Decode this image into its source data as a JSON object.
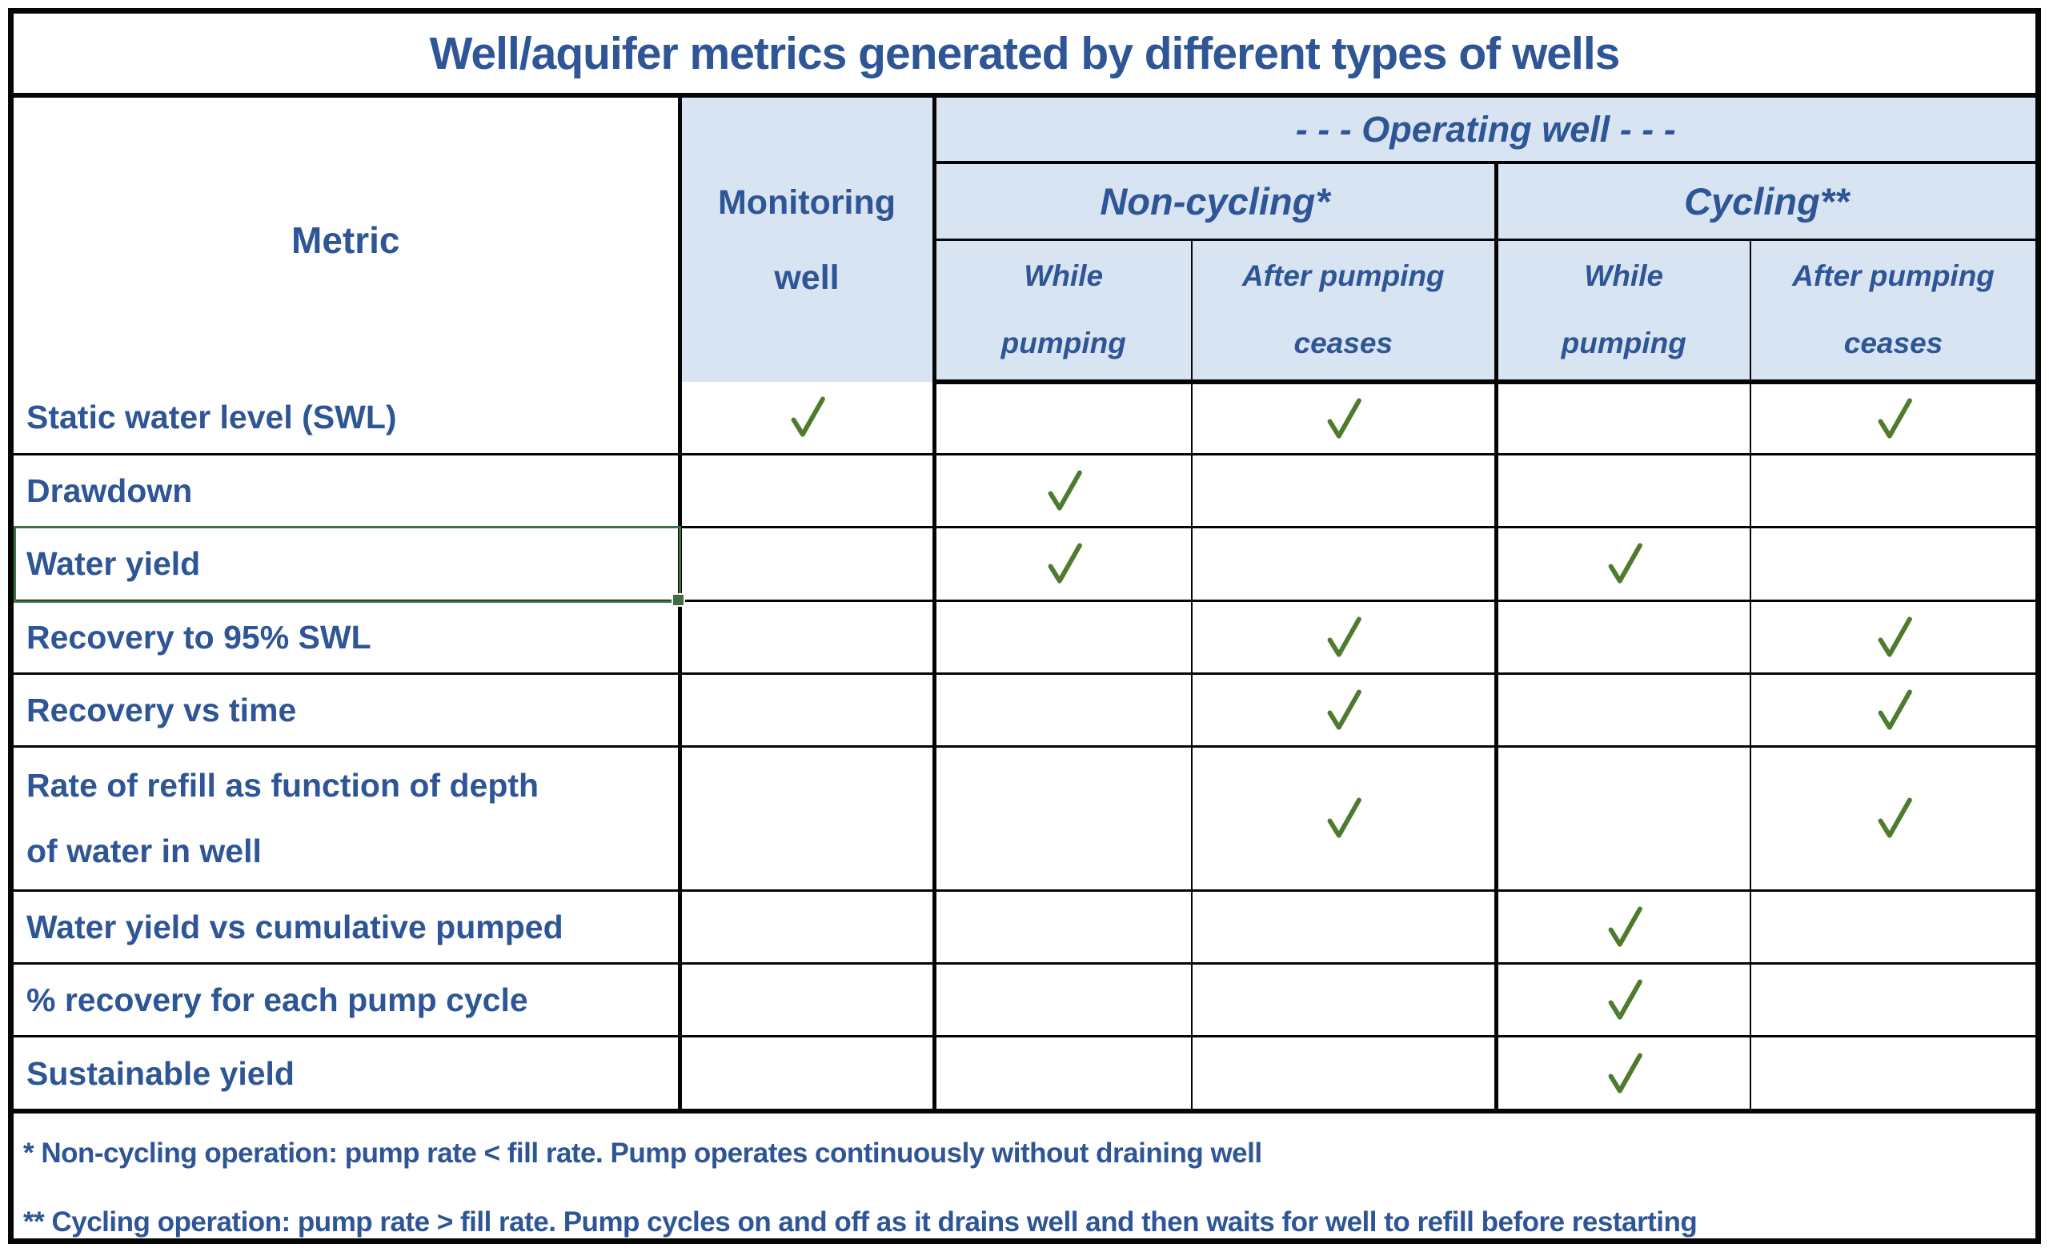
{
  "title": "Well/aquifer metrics generated by different types of wells",
  "table": {
    "metric_header": "Metric",
    "monitoring_header": "Monitoring well",
    "operating_header": "- - - Operating well - - -",
    "noncycling_header": "Non-cycling*",
    "cycling_header": "Cycling**",
    "subheaders": {
      "noncycling_while": "While pumping",
      "noncycling_after": "After pumping ceases",
      "cycling_while": "While pumping",
      "cycling_after": "After pumping ceases"
    },
    "check_icon": "✓",
    "rows": [
      {
        "label": "Static water level (SWL)",
        "monitoring": true,
        "noncycling_while": false,
        "noncycling_after": true,
        "cycling_while": false,
        "cycling_after": true,
        "tall": false
      },
      {
        "label": "Drawdown",
        "monitoring": false,
        "noncycling_while": true,
        "noncycling_after": false,
        "cycling_while": false,
        "cycling_after": false,
        "tall": false
      },
      {
        "label": "Water yield",
        "monitoring": false,
        "noncycling_while": true,
        "noncycling_after": false,
        "cycling_while": true,
        "cycling_after": false,
        "tall": false
      },
      {
        "label": "Recovery to 95% SWL",
        "monitoring": false,
        "noncycling_while": false,
        "noncycling_after": true,
        "cycling_while": false,
        "cycling_after": true,
        "tall": false
      },
      {
        "label": "Recovery vs time",
        "monitoring": false,
        "noncycling_while": false,
        "noncycling_after": true,
        "cycling_while": false,
        "cycling_after": true,
        "tall": false
      },
      {
        "label": "Rate of refill as function of depth of water in well",
        "monitoring": false,
        "noncycling_while": false,
        "noncycling_after": true,
        "cycling_while": false,
        "cycling_after": true,
        "tall": true
      },
      {
        "label": "Water yield vs cumulative pumped",
        "monitoring": false,
        "noncycling_while": false,
        "noncycling_after": false,
        "cycling_while": true,
        "cycling_after": false,
        "tall": false
      },
      {
        "label": "% recovery for each pump cycle",
        "monitoring": false,
        "noncycling_while": false,
        "noncycling_after": false,
        "cycling_while": true,
        "cycling_after": false,
        "tall": false
      },
      {
        "label": "Sustainable yield",
        "monitoring": false,
        "noncycling_while": false,
        "noncycling_after": false,
        "cycling_while": true,
        "cycling_after": false,
        "tall": false
      }
    ]
  },
  "selection": {
    "selected_metric": "Water yield"
  },
  "footnotes": [
    "* Non-cycling operation: pump rate < fill rate. Pump operates continuously without draining well",
    "** Cycling operation: pump rate > fill rate. Pump cycles on and off as it drains well and then waits for well to refill before restarting"
  ],
  "colors": {
    "header_fill": "#d9e4f3",
    "text_blue": "#2e5595",
    "check_green": "#4e7b2e",
    "selection_green": "#3f6e44",
    "border_black": "#050505"
  }
}
